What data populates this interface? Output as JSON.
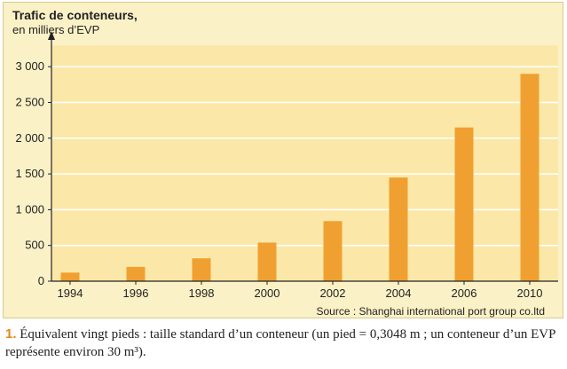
{
  "chart_data": {
    "type": "bar",
    "title": "Trafic de conteneurs,",
    "subtitle": "en milliers d’EVP",
    "categories": [
      "1994",
      "1996",
      "1998",
      "2000",
      "2002",
      "2004",
      "2006",
      "2010"
    ],
    "values": [
      120,
      200,
      320,
      540,
      840,
      1450,
      2150,
      2900
    ],
    "y_ticks": [
      "0",
      "500",
      "1 000",
      "1 500",
      "2 000",
      "2 500",
      "3 000"
    ],
    "y_tick_values": [
      0,
      500,
      1000,
      1500,
      2000,
      2500,
      3000
    ],
    "ylim": [
      0,
      3300
    ],
    "grid": true,
    "bar_color": "#f0a030",
    "background_color": "#fbf1c7",
    "grid_color": "#ffffff"
  },
  "source": "Source : Shanghai international port group co.ltd",
  "footnote": {
    "number": "1.",
    "text": "Équivalent vingt pieds : taille standard d’un conteneur (un pied = 0,3048 m ; un conteneur d’un EVP représente environ 30 m³)."
  }
}
